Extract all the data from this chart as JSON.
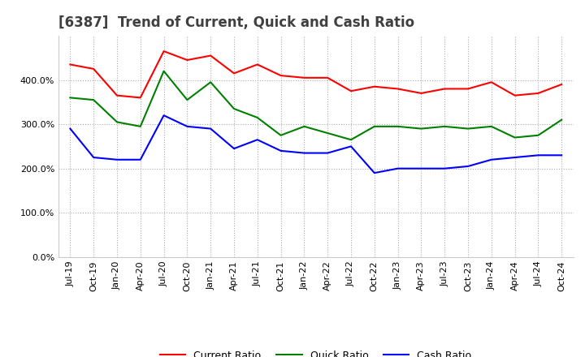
{
  "title": "[6387]  Trend of Current, Quick and Cash Ratio",
  "x_labels": [
    "Jul-19",
    "Oct-19",
    "Jan-20",
    "Apr-20",
    "Jul-20",
    "Oct-20",
    "Jan-21",
    "Apr-21",
    "Jul-21",
    "Oct-21",
    "Jan-22",
    "Apr-22",
    "Jul-22",
    "Oct-22",
    "Jan-23",
    "Apr-23",
    "Jul-23",
    "Oct-23",
    "Jan-24",
    "Apr-24",
    "Jul-24",
    "Oct-24"
  ],
  "current_ratio": [
    435,
    425,
    365,
    360,
    465,
    445,
    455,
    415,
    435,
    410,
    405,
    405,
    375,
    385,
    380,
    370,
    380,
    380,
    395,
    365,
    370,
    390
  ],
  "quick_ratio": [
    360,
    355,
    305,
    295,
    420,
    355,
    395,
    335,
    315,
    275,
    295,
    280,
    265,
    295,
    295,
    290,
    295,
    290,
    295,
    270,
    275,
    310
  ],
  "cash_ratio": [
    290,
    225,
    220,
    220,
    320,
    295,
    290,
    245,
    265,
    240,
    235,
    235,
    250,
    190,
    200,
    200,
    200,
    205,
    220,
    225,
    230,
    230
  ],
  "current_color": "#FF0000",
  "quick_color": "#008000",
  "cash_color": "#0000FF",
  "ylim_min": 0,
  "ylim_max": 500,
  "background_color": "#ffffff",
  "grid_color": "#aaaaaa",
  "title_fontsize": 12,
  "legend_fontsize": 9,
  "tick_fontsize": 8,
  "title_color": "#404040"
}
